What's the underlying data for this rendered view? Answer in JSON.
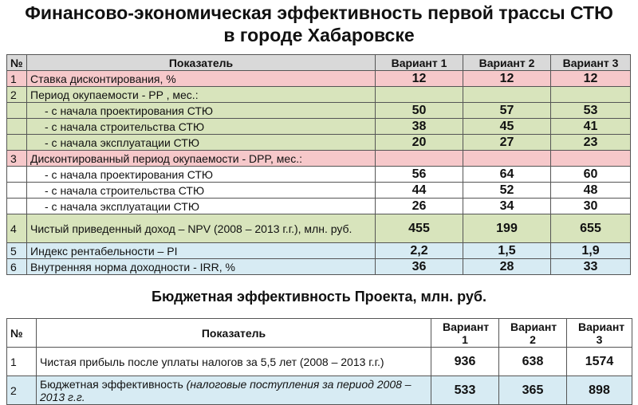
{
  "title_lines": [
    "Финансово-экономическая эффективность первой трассы СТЮ",
    "в городе Хабаровске"
  ],
  "table1": {
    "header": [
      "№",
      "Показатель",
      "Вариант 1",
      "Вариант 2",
      "Вариант 3"
    ],
    "header_color": "#d9d9d9",
    "rows": [
      {
        "num": "1",
        "label": "Ставка дисконтирования, %",
        "values": [
          "12",
          "12",
          "12"
        ],
        "color": "#f6c8ca"
      },
      {
        "num": "2",
        "label": "Период окупаемости - PP , мес.:",
        "color": "#d8e4bc"
      },
      {
        "label": "- с начала проектирования СТЮ",
        "values": [
          "50",
          "57",
          "53"
        ],
        "color": "#d8e4bc"
      },
      {
        "label": "- с начала строительства СТЮ",
        "values": [
          "38",
          "45",
          "41"
        ],
        "color": "#d8e4bc"
      },
      {
        "label": "- с начала эксплуатации СТЮ",
        "values": [
          "20",
          "27",
          "23"
        ],
        "color": "#d8e4bc"
      },
      {
        "num": "3",
        "label": "Дисконтированный период окупаемости - DPP, мес.:",
        "color": "#f6c8ca"
      },
      {
        "label": "- с начала проектирования СТЮ",
        "values": [
          "56",
          "64",
          "60"
        ],
        "color": "#ffffff"
      },
      {
        "label": "- с начала строительства СТЮ",
        "values": [
          "44",
          "52",
          "48"
        ],
        "color": "#ffffff"
      },
      {
        "label": "- с начала эксплуатации СТЮ",
        "values": [
          "26",
          "34",
          "30"
        ],
        "color": "#ffffff"
      },
      {
        "num": "4",
        "label": "Чистый приведенный доход – NPV (2008 – 2013 г.г.), млн. руб.",
        "values": [
          "455",
          "199",
          "655"
        ],
        "color": "#d8e4bc"
      },
      {
        "num": "5",
        "label": "Индекс рентабельности – PI",
        "values": [
          "2,2",
          "1,5",
          "1,9"
        ],
        "color": "#d7ebf3"
      },
      {
        "num": "6",
        "label": "Внутренняя норма доходности - IRR, %",
        "values": [
          "36",
          "28",
          "33"
        ],
        "color": "#d7ebf3"
      }
    ]
  },
  "subtitle": "Бюджетная эффективность Проекта, млн. руб.",
  "table2": {
    "header": [
      "№",
      "Показатель",
      "Вариант 1",
      "Вариант 2",
      "Вариант 3"
    ],
    "header_color": "#ffffff",
    "rows": [
      {
        "num": "1",
        "label": "Чистая прибыль после уплаты налогов за 5,5 лет (2008 – 2013 г.г.)",
        "values": [
          "936",
          "638",
          "1574"
        ],
        "color": "#ffffff"
      },
      {
        "num": "2",
        "label": "Бюджетная эффективность",
        "note": "(налоговые поступления за период 2008 – 2013 г.г.",
        "values": [
          "533",
          "365",
          "898"
        ],
        "color": "#d7ebf3"
      }
    ]
  }
}
